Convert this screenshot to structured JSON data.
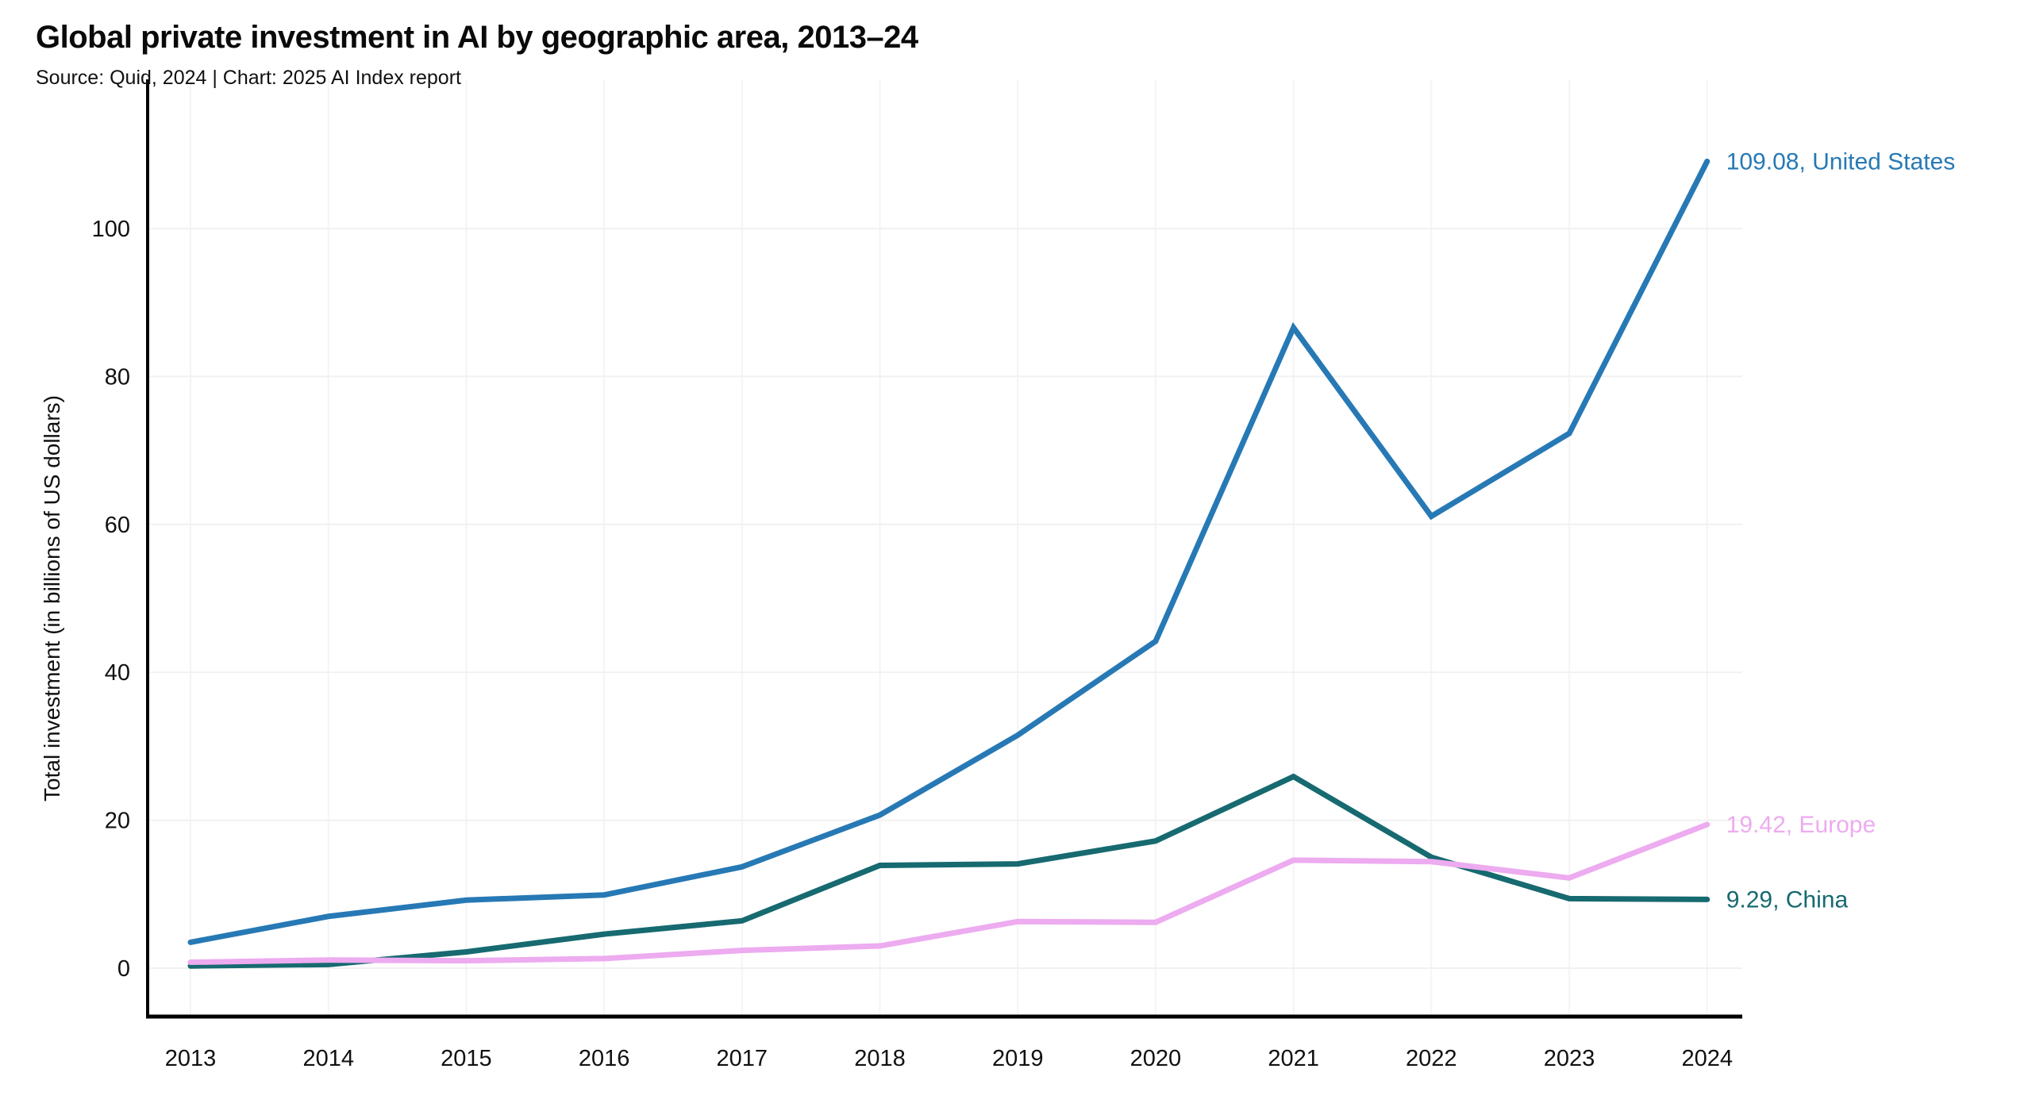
{
  "header": {
    "title": "Global private investment in AI by geographic area, 2013–24",
    "source": "Source: Quid, 2024 | Chart: 2025 AI Index report"
  },
  "chart_data": {
    "type": "line",
    "title": "Global private investment in AI by geographic area, 2013–24",
    "source": "Source: Quid, 2024 | Chart: 2025 AI Index report",
    "xlabel": "",
    "ylabel": "Total investment (in billions of US dollars)",
    "x": [
      2013,
      2014,
      2015,
      2016,
      2017,
      2018,
      2019,
      2020,
      2021,
      2022,
      2023,
      2024
    ],
    "yticks": [
      0,
      20,
      40,
      60,
      80,
      100
    ],
    "ylim": [
      0,
      120
    ],
    "grid": true,
    "legend_position": "end-of-line-labels",
    "axis_color": "#000000",
    "gridline_color": "#f1f1f1",
    "series": [
      {
        "name": "United States",
        "color": "#2779b5",
        "end_label": "109.08, United States",
        "end_value": 109.08,
        "values": [
          3.5,
          7.0,
          9.2,
          9.9,
          13.7,
          20.7,
          31.5,
          44.2,
          86.6,
          61.1,
          72.3,
          109.08
        ]
      },
      {
        "name": "China",
        "color": "#166a70",
        "end_label": "9.29, China",
        "end_value": 9.29,
        "values": [
          0.3,
          0.5,
          2.2,
          4.6,
          6.4,
          13.9,
          14.1,
          17.2,
          25.9,
          15.0,
          9.4,
          9.29
        ]
      },
      {
        "name": "Europe",
        "color": "#edabf0",
        "end_label": "19.42, Europe",
        "end_value": 19.42,
        "values": [
          0.8,
          1.1,
          1.0,
          1.3,
          2.4,
          3.0,
          6.3,
          6.2,
          14.6,
          14.4,
          12.2,
          19.42
        ]
      }
    ]
  }
}
